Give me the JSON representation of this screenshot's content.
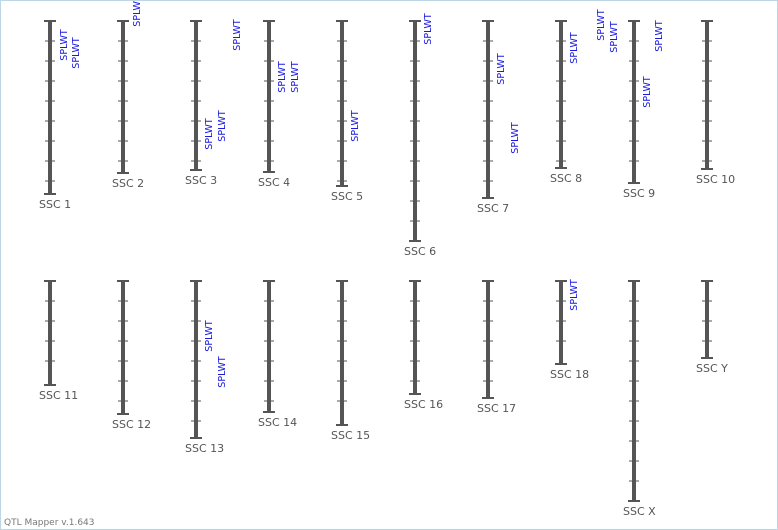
{
  "app": {
    "footer": "QTL Mapper v.1.643"
  },
  "colors": {
    "chromosome": "#555555",
    "qtl_label": "#1a1ae0",
    "border": "#bcd6e6"
  },
  "chromosomes": [
    {
      "name": "SSC 1",
      "qtl": [
        "SPLWT",
        "SPLWT"
      ]
    },
    {
      "name": "SSC 2",
      "qtl": [
        "SPLWT"
      ]
    },
    {
      "name": "SSC 3",
      "qtl": [
        "SPLWT",
        "SPLWT",
        "SPLWT"
      ]
    },
    {
      "name": "SSC 4",
      "qtl": [
        "SPLWT",
        "SPLWT"
      ]
    },
    {
      "name": "SSC 5",
      "qtl": [
        "SPLWT"
      ]
    },
    {
      "name": "SSC 6",
      "qtl": [
        "SPLWT"
      ]
    },
    {
      "name": "SSC 7",
      "qtl": [
        "SPLWT",
        "SPLWT"
      ]
    },
    {
      "name": "SSC 8",
      "qtl": [
        "SPLWT",
        "SPLWT",
        "SPLWT"
      ]
    },
    {
      "name": "SSC 9",
      "qtl": [
        "SPLWT",
        "SPLWT"
      ]
    },
    {
      "name": "SSC 10",
      "qtl": []
    },
    {
      "name": "SSC 11",
      "qtl": []
    },
    {
      "name": "SSC 12",
      "qtl": []
    },
    {
      "name": "SSC 13",
      "qtl": [
        "SPLWT",
        "SPLWT"
      ]
    },
    {
      "name": "SSC 14",
      "qtl": []
    },
    {
      "name": "SSC 15",
      "qtl": []
    },
    {
      "name": "SSC 16",
      "qtl": []
    },
    {
      "name": "SSC 17",
      "qtl": []
    },
    {
      "name": "SSC 18",
      "qtl": [
        "SPLWT"
      ]
    },
    {
      "name": "SSC X",
      "qtl": []
    },
    {
      "name": "SSC Y",
      "qtl": []
    }
  ]
}
